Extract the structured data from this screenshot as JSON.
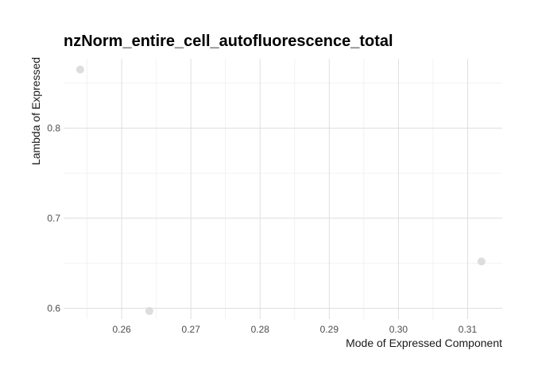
{
  "chart_data": {
    "type": "scatter",
    "title": "nzNorm_entire_cell_autofluorescence_total",
    "xlabel": "Mode of Expressed Component",
    "ylabel": "Lambda of Expressed",
    "xlim": [
      0.2516,
      0.315
    ],
    "ylim": [
      0.588,
      0.877
    ],
    "x_ticks": [
      0.26,
      0.27,
      0.28,
      0.29,
      0.3,
      0.31
    ],
    "x_tick_labels": [
      "0.26",
      "0.27",
      "0.28",
      "0.29",
      "0.30",
      "0.31"
    ],
    "y_ticks": [
      0.6,
      0.7,
      0.8
    ],
    "y_tick_labels": [
      "0.6",
      "0.7",
      "0.8"
    ],
    "grid": true,
    "legend": "none",
    "points": [
      {
        "x": 0.254,
        "y": 0.865
      },
      {
        "x": 0.264,
        "y": 0.597
      },
      {
        "x": 0.312,
        "y": 0.652
      }
    ],
    "colors": {
      "point": "#d9d9d9",
      "grid_major": "#dedede",
      "grid_minor": "#efefef",
      "title": "#000000",
      "axis_text": "#4d4d4d",
      "axis_title": "#1a1a1a"
    }
  }
}
